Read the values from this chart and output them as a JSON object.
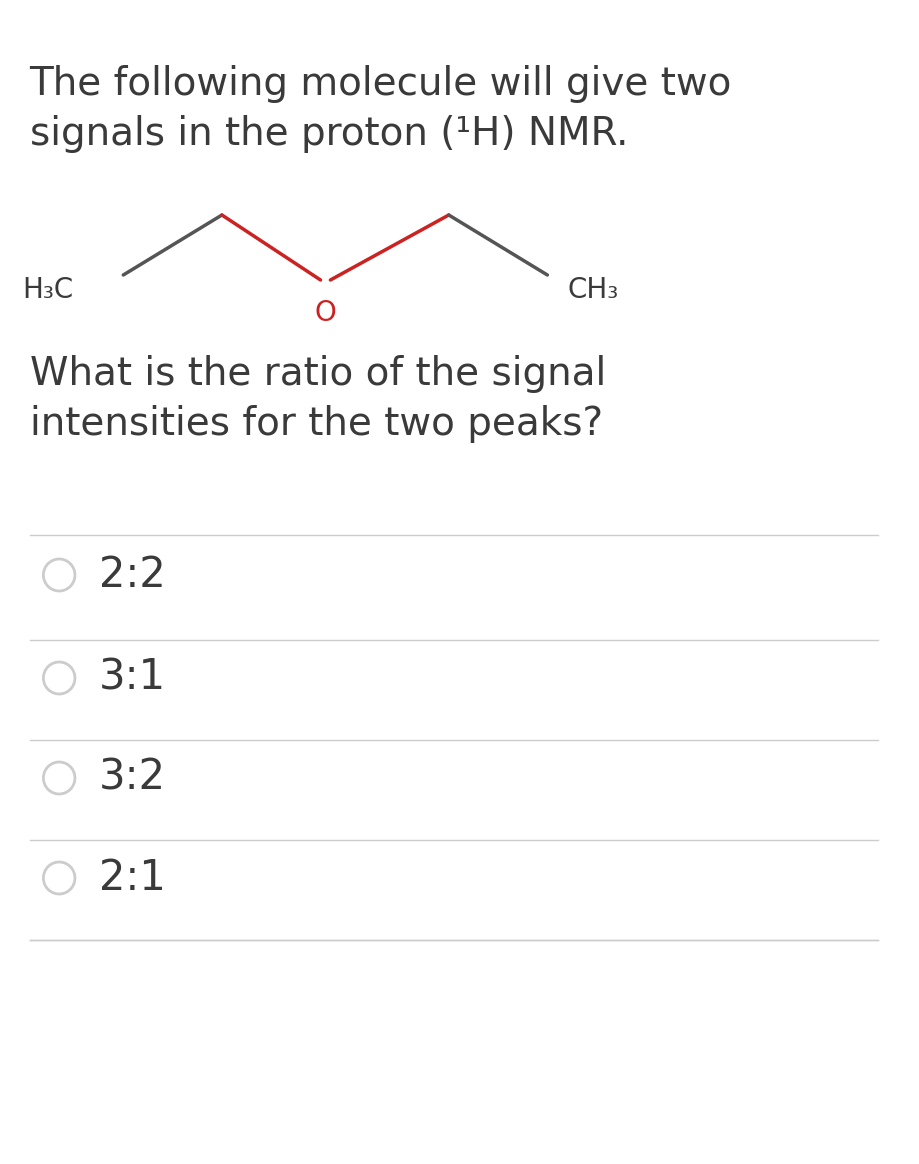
{
  "bg_color": "#ffffff",
  "text_color": "#3a3a3a",
  "line_color": "#cccccc",
  "molecule_line_color_dark": "#555555",
  "molecule_line_color_red": "#cc2222",
  "oxygen_color": "#cc2222",
  "title_line1": "The following molecule will give two",
  "title_line2": "signals in the proton (¹H) NMR.",
  "question_line1": "What is the ratio of the signal",
  "question_line2": "intensities for the two peaks?",
  "options": [
    "2:2",
    "3:1",
    "3:2",
    "2:1"
  ],
  "h3c_label": "H₃C",
  "ch3_label": "CH₃",
  "o_label": "O",
  "title_fontsize": 28,
  "question_fontsize": 28,
  "option_fontsize": 30,
  "label_fontsize": 20
}
